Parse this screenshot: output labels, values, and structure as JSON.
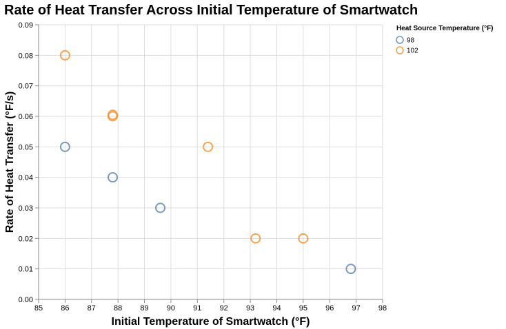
{
  "chart_data": {
    "type": "scatter",
    "title": "Rate of Heat Transfer Across Initial Temperature of Smartwatch",
    "xlabel": "Initial Temperature of Smartwatch (°F)",
    "ylabel": "Rate of Heat Transfer (°F/s)",
    "xlim": [
      85,
      98
    ],
    "ylim": [
      0,
      0.09
    ],
    "x_ticks": [
      "85",
      "86",
      "87",
      "88",
      "89",
      "90",
      "91",
      "92",
      "93",
      "94",
      "95",
      "96",
      "97",
      "98"
    ],
    "y_ticks": [
      "0.00",
      "0.01",
      "0.02",
      "0.03",
      "0.04",
      "0.05",
      "0.06",
      "0.07",
      "0.08",
      "0.09"
    ],
    "grid": true,
    "legend": {
      "title": "Heat Source Temperature (°F)",
      "position": "top-right"
    },
    "series": [
      {
        "name": "98",
        "color": "#4c78a8",
        "points": [
          {
            "x": 86.0,
            "y": 0.05
          },
          {
            "x": 87.8,
            "y": 0.04
          },
          {
            "x": 89.6,
            "y": 0.03
          },
          {
            "x": 96.8,
            "y": 0.01
          }
        ]
      },
      {
        "name": "102",
        "color": "#f58518",
        "points": [
          {
            "x": 86.0,
            "y": 0.08
          },
          {
            "x": 87.8,
            "y": 0.06
          },
          {
            "x": 87.8,
            "y": 0.0605
          },
          {
            "x": 91.4,
            "y": 0.05
          },
          {
            "x": 93.2,
            "y": 0.02
          },
          {
            "x": 95.0,
            "y": 0.02
          }
        ]
      }
    ]
  }
}
